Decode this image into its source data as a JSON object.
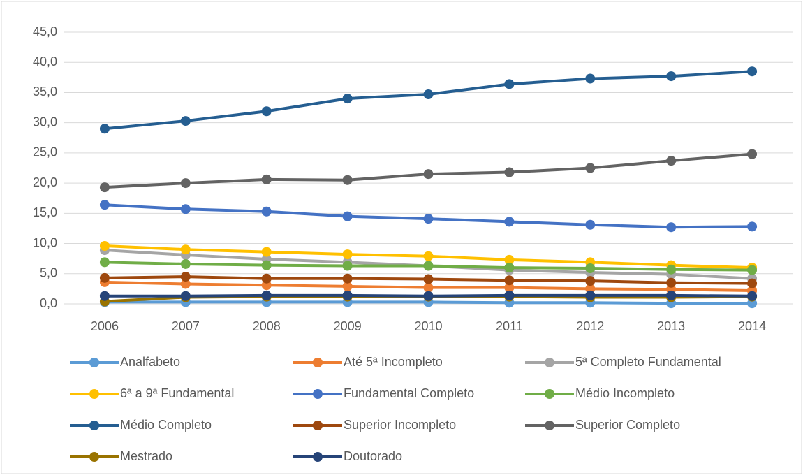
{
  "chart_data": {
    "type": "line",
    "categories": [
      "2006",
      "2007",
      "2008",
      "2009",
      "2010",
      "2011",
      "2012",
      "2013",
      "2014"
    ],
    "ylim": [
      0,
      45
    ],
    "yticks": [
      {
        "value": 0,
        "label": "0,0"
      },
      {
        "value": 5,
        "label": "5,0"
      },
      {
        "value": 10,
        "label": "10,0"
      },
      {
        "value": 15,
        "label": "15,0"
      },
      {
        "value": 20,
        "label": "20,0"
      },
      {
        "value": 25,
        "label": "25,0"
      },
      {
        "value": 30,
        "label": "30,0"
      },
      {
        "value": 35,
        "label": "35,0"
      },
      {
        "value": 40,
        "label": "40,0"
      },
      {
        "value": 45,
        "label": "45,0"
      }
    ],
    "grid": true,
    "legend": "bottom",
    "series": [
      {
        "name": "Analfabeto",
        "color": "#5B9BD5",
        "values": [
          0.3,
          0.3,
          0.3,
          0.3,
          0.3,
          0.2,
          0.2,
          0.1,
          0.1
        ]
      },
      {
        "name": "Até 5ª Incompleto",
        "color": "#ED7D31",
        "values": [
          3.6,
          3.3,
          3.1,
          2.9,
          2.7,
          2.7,
          2.5,
          2.4,
          2.2
        ]
      },
      {
        "name": "5ª Completo Fundamental",
        "color": "#A5A5A5",
        "values": [
          8.9,
          8.1,
          7.4,
          6.9,
          6.3,
          5.6,
          5.2,
          4.9,
          4.2
        ]
      },
      {
        "name": "6ª a 9ª Fundamental",
        "color": "#FFC000",
        "values": [
          9.6,
          9.0,
          8.6,
          8.2,
          7.9,
          7.3,
          6.9,
          6.4,
          6.0
        ]
      },
      {
        "name": "Fundamental Completo",
        "color": "#4472C4",
        "values": [
          16.4,
          15.7,
          15.3,
          14.5,
          14.1,
          13.6,
          13.1,
          12.7,
          12.8
        ]
      },
      {
        "name": "Médio Incompleto",
        "color": "#70AD47",
        "values": [
          6.9,
          6.6,
          6.4,
          6.3,
          6.3,
          6.0,
          5.9,
          5.7,
          5.6
        ]
      },
      {
        "name": "Médio Completo",
        "color": "#255E91",
        "values": [
          29.0,
          30.3,
          31.9,
          34.0,
          34.7,
          36.4,
          37.3,
          37.7,
          38.5
        ]
      },
      {
        "name": "Superior Incompleto",
        "color": "#9E480E",
        "values": [
          4.3,
          4.5,
          4.2,
          4.2,
          4.1,
          3.9,
          3.8,
          3.5,
          3.4
        ]
      },
      {
        "name": "Superior Completo",
        "color": "#636363",
        "values": [
          19.3,
          20.0,
          20.6,
          20.5,
          21.5,
          21.8,
          22.5,
          23.7,
          24.8
        ]
      },
      {
        "name": "Mestrado",
        "color": "#997300",
        "values": [
          0.4,
          1.1,
          1.2,
          1.2,
          1.2,
          1.2,
          1.1,
          1.1,
          1.2
        ]
      },
      {
        "name": "Doutorado",
        "color": "#264478",
        "values": [
          1.3,
          1.3,
          1.4,
          1.4,
          1.3,
          1.4,
          1.4,
          1.4,
          1.3
        ]
      }
    ]
  }
}
